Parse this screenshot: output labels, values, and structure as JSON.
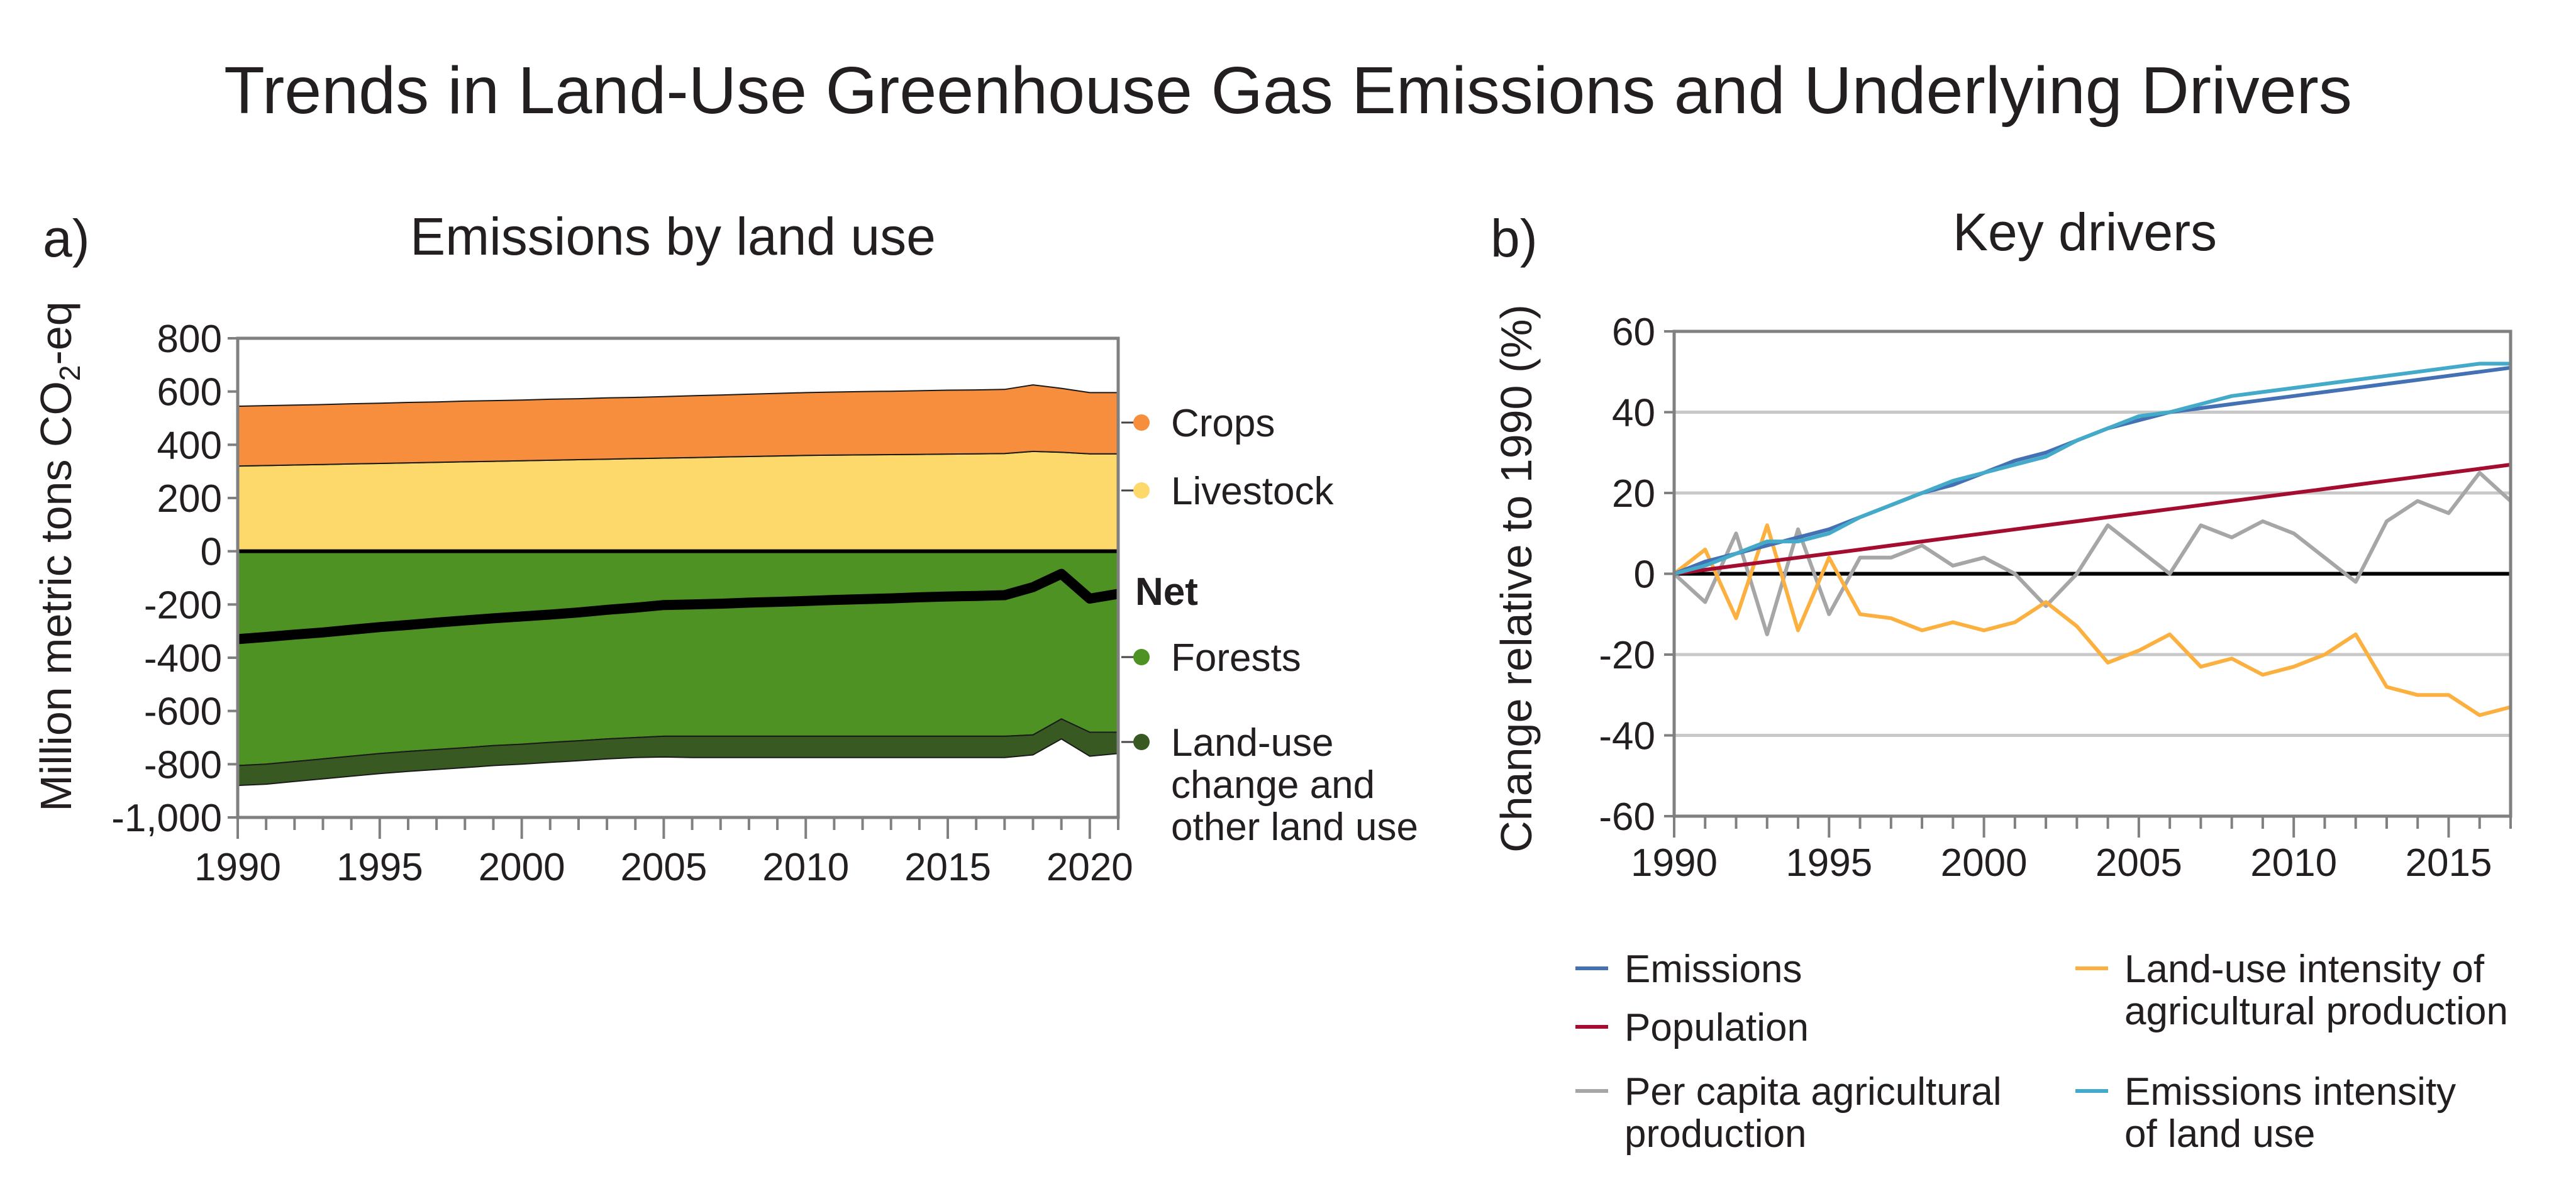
{
  "title": "Trends in Land-Use Greenhouse Gas Emissions and Underlying Drivers",
  "colors": {
    "crops": "#f78e3d",
    "livestock": "#fdd96b",
    "forests": "#4e9223",
    "land_use_change": "#385a22",
    "net": "#000000",
    "emissions": "#4470b4",
    "population": "#a50d30",
    "per_capita_ag": "#a6a6a6",
    "land_use_intensity": "#fbb040",
    "emissions_intensity": "#44aac9",
    "grid": "#c8c8c8",
    "frame": "#808080"
  },
  "chart_data": [
    {
      "id": "a",
      "panel_label": "a)",
      "title": "Emissions by land use",
      "type": "area",
      "ylabel": "Million metric tons CO₂-eq",
      "ylabel_main": "Million metric tons CO",
      "ylabel_sub": "2",
      "ylabel_tail": "-eq",
      "xlim": [
        1990,
        2021
      ],
      "ylim": [
        -1000,
        800
      ],
      "x_ticks": [
        "1990",
        "1995",
        "2000",
        "2005",
        "2010",
        "2015",
        "2020"
      ],
      "y_ticks": [
        "800",
        "600",
        "400",
        "200",
        "0",
        "-200",
        "-400",
        "-600",
        "-800",
        "-1,000"
      ],
      "x": [
        1990,
        1991,
        1992,
        1993,
        1994,
        1995,
        1996,
        1997,
        1998,
        1999,
        2000,
        2001,
        2002,
        2003,
        2004,
        2005,
        2006,
        2007,
        2008,
        2009,
        2010,
        2011,
        2012,
        2013,
        2014,
        2015,
        2016,
        2017,
        2018,
        2019,
        2020,
        2021
      ],
      "series": [
        {
          "name": "Crops",
          "key": "crops",
          "kind": "positive",
          "values": [
            225,
            225,
            225,
            225,
            226,
            226,
            227,
            227,
            228,
            228,
            228,
            229,
            229,
            230,
            230,
            231,
            232,
            233,
            234,
            235,
            236,
            237,
            238,
            238,
            239,
            240,
            240,
            241,
            250,
            240,
            230,
            230
          ]
        },
        {
          "name": "Livestock",
          "key": "livestock",
          "kind": "positive",
          "values": [
            320,
            322,
            324,
            326,
            328,
            330,
            332,
            334,
            336,
            338,
            340,
            342,
            344,
            346,
            348,
            350,
            352,
            354,
            356,
            358,
            360,
            361,
            362,
            363,
            364,
            365,
            366,
            367,
            375,
            372,
            366,
            366
          ]
        },
        {
          "name": "Forests",
          "key": "forests",
          "kind": "negative",
          "values": [
            -805,
            -800,
            -790,
            -780,
            -770,
            -760,
            -752,
            -745,
            -738,
            -730,
            -725,
            -718,
            -712,
            -705,
            -700,
            -695,
            -695,
            -695,
            -695,
            -695,
            -695,
            -695,
            -695,
            -695,
            -695,
            -695,
            -695,
            -695,
            -690,
            -630,
            -680,
            -680
          ]
        },
        {
          "name": "Land-use change and other land use",
          "key": "land_use_change",
          "kind": "negative",
          "values": [
            -75,
            -75,
            -75,
            -75,
            -75,
            -75,
            -75,
            -75,
            -75,
            -75,
            -75,
            -75,
            -75,
            -75,
            -75,
            -78,
            -80,
            -80,
            -80,
            -80,
            -80,
            -80,
            -80,
            -80,
            -80,
            -80,
            -80,
            -80,
            -75,
            -75,
            -90,
            -80
          ]
        },
        {
          "name": "Net",
          "key": "net",
          "kind": "line",
          "values": [
            -330,
            -322,
            -313,
            -305,
            -295,
            -285,
            -277,
            -268,
            -260,
            -252,
            -245,
            -238,
            -230,
            -220,
            -212,
            -202,
            -200,
            -197,
            -193,
            -190,
            -187,
            -183,
            -180,
            -177,
            -173,
            -170,
            -168,
            -165,
            -135,
            -85,
            -178,
            -160
          ]
        }
      ],
      "legend": [
        {
          "label": "Crops",
          "key": "crops"
        },
        {
          "label": "Livestock",
          "key": "livestock"
        },
        {
          "label": "Net",
          "key": "net"
        },
        {
          "label": "Forests",
          "key": "forests"
        },
        {
          "label": "Land-use change and other land use",
          "key": "land_use_change",
          "lines": [
            "Land-use",
            "change and",
            "other land use"
          ]
        }
      ]
    },
    {
      "id": "b",
      "panel_label": "b)",
      "title": "Key drivers",
      "type": "line",
      "ylabel": "Change relative to 1990 (%)",
      "xlim": [
        1990,
        2017
      ],
      "ylim": [
        -60,
        60
      ],
      "grid": true,
      "x_ticks": [
        "1990",
        "1995",
        "2000",
        "2005",
        "2010",
        "2015"
      ],
      "y_ticks": [
        "60",
        "40",
        "20",
        "0",
        "-20",
        "-40",
        "-60"
      ],
      "x": [
        1990,
        1991,
        1992,
        1993,
        1994,
        1995,
        1996,
        1997,
        1998,
        1999,
        2000,
        2001,
        2002,
        2003,
        2004,
        2005,
        2006,
        2007,
        2008,
        2009,
        2010,
        2011,
        2012,
        2013,
        2014,
        2015,
        2016,
        2017
      ],
      "series": [
        {
          "name": "Emissions",
          "key": "emissions",
          "values": [
            0,
            3,
            5,
            7,
            9,
            11,
            14,
            17,
            20,
            22,
            25,
            28,
            30,
            33,
            36,
            38,
            40,
            41,
            42,
            43,
            44,
            45,
            46,
            47,
            48,
            49,
            50,
            51
          ]
        },
        {
          "name": "Population",
          "key": "population",
          "values": [
            0,
            1,
            2,
            3,
            4,
            5,
            6,
            7,
            8,
            9,
            10,
            11,
            12,
            13,
            14,
            15,
            16,
            17,
            18,
            19,
            20,
            21,
            22,
            23,
            24,
            25,
            26,
            27
          ]
        },
        {
          "name": "Per capita agricultural production",
          "key": "per_capita_ag",
          "values": [
            0,
            -7,
            10,
            -15,
            11,
            -10,
            4,
            4,
            7,
            2,
            4,
            0,
            -8,
            0,
            12,
            6,
            0,
            12,
            9,
            13,
            10,
            4,
            -2,
            13,
            18,
            15,
            25,
            18
          ]
        },
        {
          "name": "Land-use intensity of agricultural production",
          "key": "land_use_intensity",
          "values": [
            0,
            6,
            -11,
            12,
            -14,
            4,
            -10,
            -11,
            -14,
            -12,
            -14,
            -12,
            -7,
            -13,
            -22,
            -19,
            -15,
            -23,
            -21,
            -25,
            -23,
            -20,
            -15,
            -28,
            -30,
            -30,
            -35,
            -33
          ]
        },
        {
          "name": "Emissions intensity of land use",
          "key": "emissions_intensity",
          "values": [
            0,
            2,
            5,
            8,
            8,
            10,
            14,
            17,
            20,
            23,
            25,
            27,
            29,
            33,
            36,
            39,
            40,
            42,
            44,
            45,
            46,
            47,
            48,
            49,
            50,
            51,
            52,
            52
          ]
        }
      ],
      "legend": [
        {
          "label": "Emissions",
          "key": "emissions",
          "lines": [
            "Emissions"
          ]
        },
        {
          "label": "Population",
          "key": "population",
          "lines": [
            "Population"
          ]
        },
        {
          "label": "Per capita agricultural production",
          "key": "per_capita_ag",
          "lines": [
            "Per capita agricultural",
            "production"
          ]
        },
        {
          "label": "Land-use intensity of agricultural production",
          "key": "land_use_intensity",
          "lines": [
            "Land-use intensity of",
            "agricultural production"
          ]
        },
        {
          "label": "Emissions intensity of land use",
          "key": "emissions_intensity",
          "lines": [
            "Emissions intensity",
            "of land use"
          ]
        }
      ]
    }
  ]
}
